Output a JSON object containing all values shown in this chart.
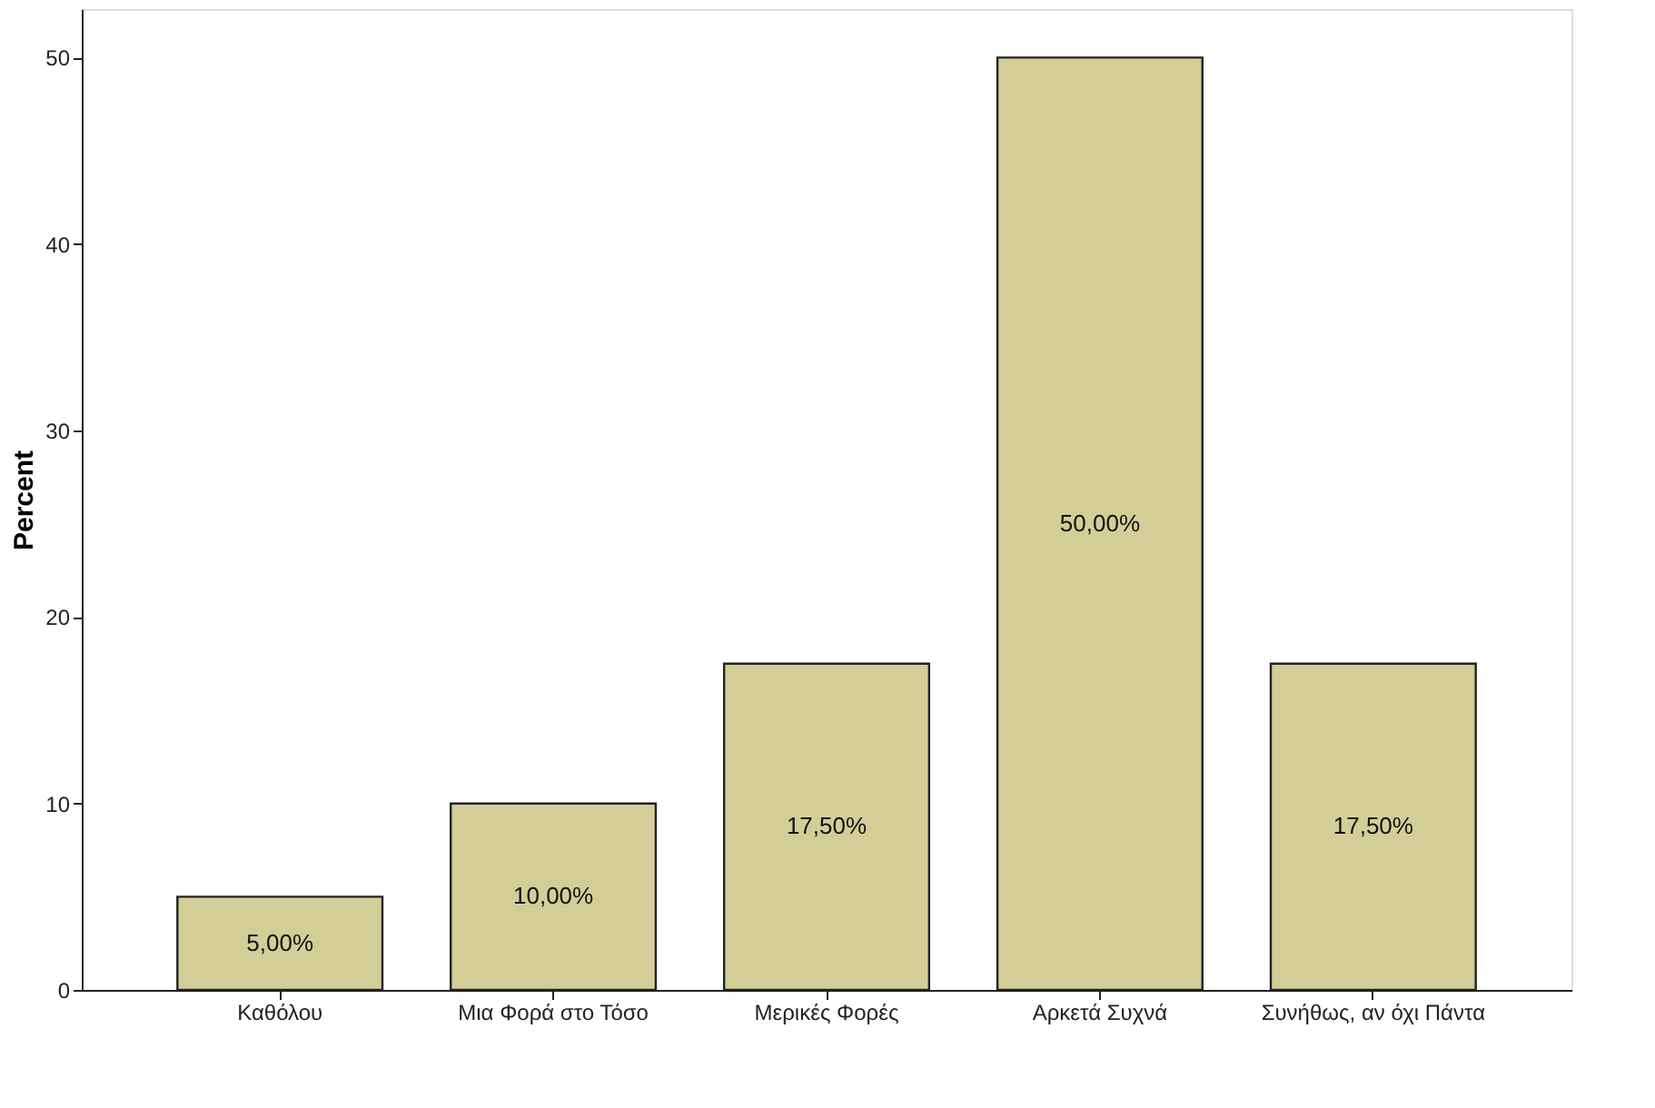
{
  "chart_data": {
    "type": "bar",
    "ylabel": "Percent",
    "categories": [
      "Καθόλου",
      "Μια Φορά στο Τόσο",
      "Μερικές Φορές",
      "Αρκετά Συχνά",
      "Συνήθως, αν όχι Πάντα"
    ],
    "values": [
      5,
      10,
      17.5,
      50,
      17.5
    ],
    "value_labels": [
      "5,00%",
      "10,00%",
      "17,50%",
      "50,00%",
      "17,50%"
    ],
    "color": "#d3ce97",
    "ylim": [
      0,
      52.6
    ],
    "yticks": [
      0,
      10,
      20,
      30,
      40,
      50
    ],
    "grid": false
  }
}
